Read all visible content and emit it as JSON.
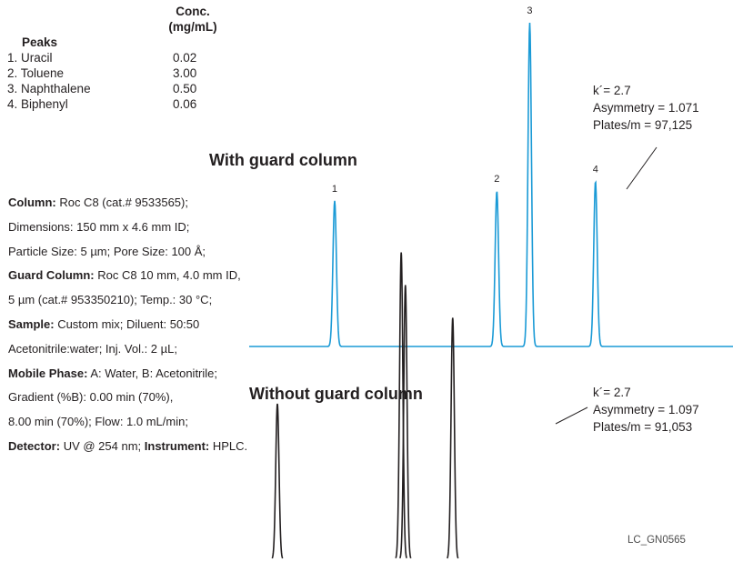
{
  "peaks_table": {
    "conc_header": "Conc.",
    "conc_unit": "(mg/mL)",
    "peaks_header": "Peaks",
    "rows": [
      {
        "name": "1. Uracil",
        "conc": "0.02"
      },
      {
        "name": "2. Toluene",
        "conc": "3.00"
      },
      {
        "name": "3. Naphthalene",
        "conc": "0.50"
      },
      {
        "name": "4. Biphenyl",
        "conc": "0.06"
      }
    ]
  },
  "conditions": [
    [
      {
        "b": "Column:"
      },
      {
        "t": " Roc C8 (cat.# 9533565);"
      }
    ],
    [
      {
        "t": "Dimensions: 150 mm x 4.6 mm ID;"
      }
    ],
    [
      {
        "t": "Particle Size: 5 µm; Pore Size: 100 Å;"
      }
    ],
    [
      {
        "b": "Guard Column:"
      },
      {
        "t": " Roc C8 10 mm, 4.0 mm ID,"
      }
    ],
    [
      {
        "t": "5 µm (cat.# 953350210); Temp.: 30 °C;"
      }
    ],
    [
      {
        "b": "Sample:"
      },
      {
        "t": " Custom mix; Diluent: 50:50"
      }
    ],
    [
      {
        "t": "Acetonitrile:water; Inj. Vol.: 2 µL;"
      }
    ],
    [
      {
        "b": "Mobile Phase:"
      },
      {
        "t": " A: Water, B: Acetonitrile;"
      }
    ],
    [
      {
        "t": "Gradient (%B): 0.00 min (70%),"
      }
    ],
    [
      {
        "t": "8.00 min (70%); Flow: 1.0 mL/min;"
      }
    ],
    [
      {
        "b": "Detector:"
      },
      {
        "t": " UV @ 254 nm; "
      },
      {
        "b": "Instrument:"
      },
      {
        "t": " HPLC."
      }
    ]
  ],
  "chart_data": {
    "type": "line",
    "image_code": "LC_GN0565",
    "series": [
      {
        "name": "With guard column",
        "color": "#1a9ad6",
        "peaks": [
          {
            "label": "1",
            "pos": 0.195,
            "height": 0.45
          },
          {
            "label": "2",
            "pos": 0.565,
            "height": 0.48
          },
          {
            "label": "3",
            "pos": 0.64,
            "height": 1.0
          },
          {
            "label": "4",
            "pos": 0.79,
            "height": 0.51
          }
        ],
        "annotation": [
          "k´= 2.7",
          "Asymmetry = 1.071",
          "Plates/m = 97,125"
        ]
      },
      {
        "name": "Without guard column",
        "color": "#231f20",
        "peaks": [
          {
            "pos": 0.0,
            "height": 0.38
          },
          {
            "pos": 0.445,
            "height": 0.75
          },
          {
            "pos": 0.46,
            "height": 0.67
          },
          {
            "pos": 0.63,
            "height": 0.59
          }
        ],
        "annotation": [
          "k´= 2.7",
          "Asymmetry = 1.097",
          "Plates/m = 91,053"
        ]
      }
    ]
  }
}
